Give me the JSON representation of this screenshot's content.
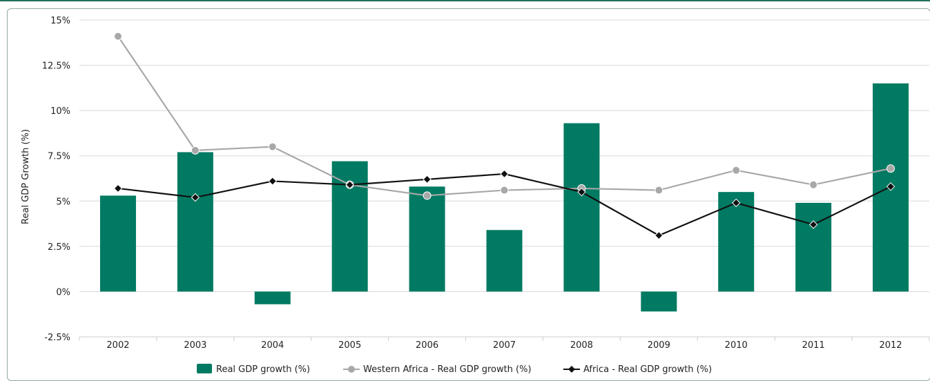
{
  "chart_data": {
    "type": "bar",
    "title": "",
    "ylabel": "Real GDP Growth (%)",
    "xlabel": "",
    "categories": [
      "2002",
      "2003",
      "2004",
      "2005",
      "2006",
      "2007",
      "2008",
      "2009",
      "2010",
      "2011",
      "2012"
    ],
    "yticks": [
      "15%",
      "12.5%",
      "10%",
      "7.5%",
      "5%",
      "2.5%",
      "0%",
      "-2.5%"
    ],
    "ylim": [
      -2.5,
      15
    ],
    "grid": true,
    "legend_position": "bottom-center",
    "series": [
      {
        "name": "Real GDP growth (%)",
        "kind": "bar",
        "color": "#007a62",
        "values": [
          5.3,
          7.7,
          -0.7,
          7.2,
          5.8,
          3.4,
          9.3,
          -1.1,
          5.5,
          4.9,
          11.5
        ]
      },
      {
        "name": "Western Africa - Real GDP growth (%)",
        "kind": "line",
        "marker": "circle",
        "color": "#a8a8a8",
        "values": [
          14.1,
          7.8,
          8.0,
          5.9,
          5.3,
          5.6,
          5.7,
          5.6,
          6.7,
          5.9,
          6.8
        ]
      },
      {
        "name": "Africa - Real GDP growth (%)",
        "kind": "line",
        "marker": "diamond",
        "color": "#111111",
        "values": [
          5.7,
          5.2,
          6.1,
          5.9,
          6.2,
          6.5,
          5.5,
          3.1,
          4.9,
          3.7,
          5.8
        ]
      }
    ]
  }
}
